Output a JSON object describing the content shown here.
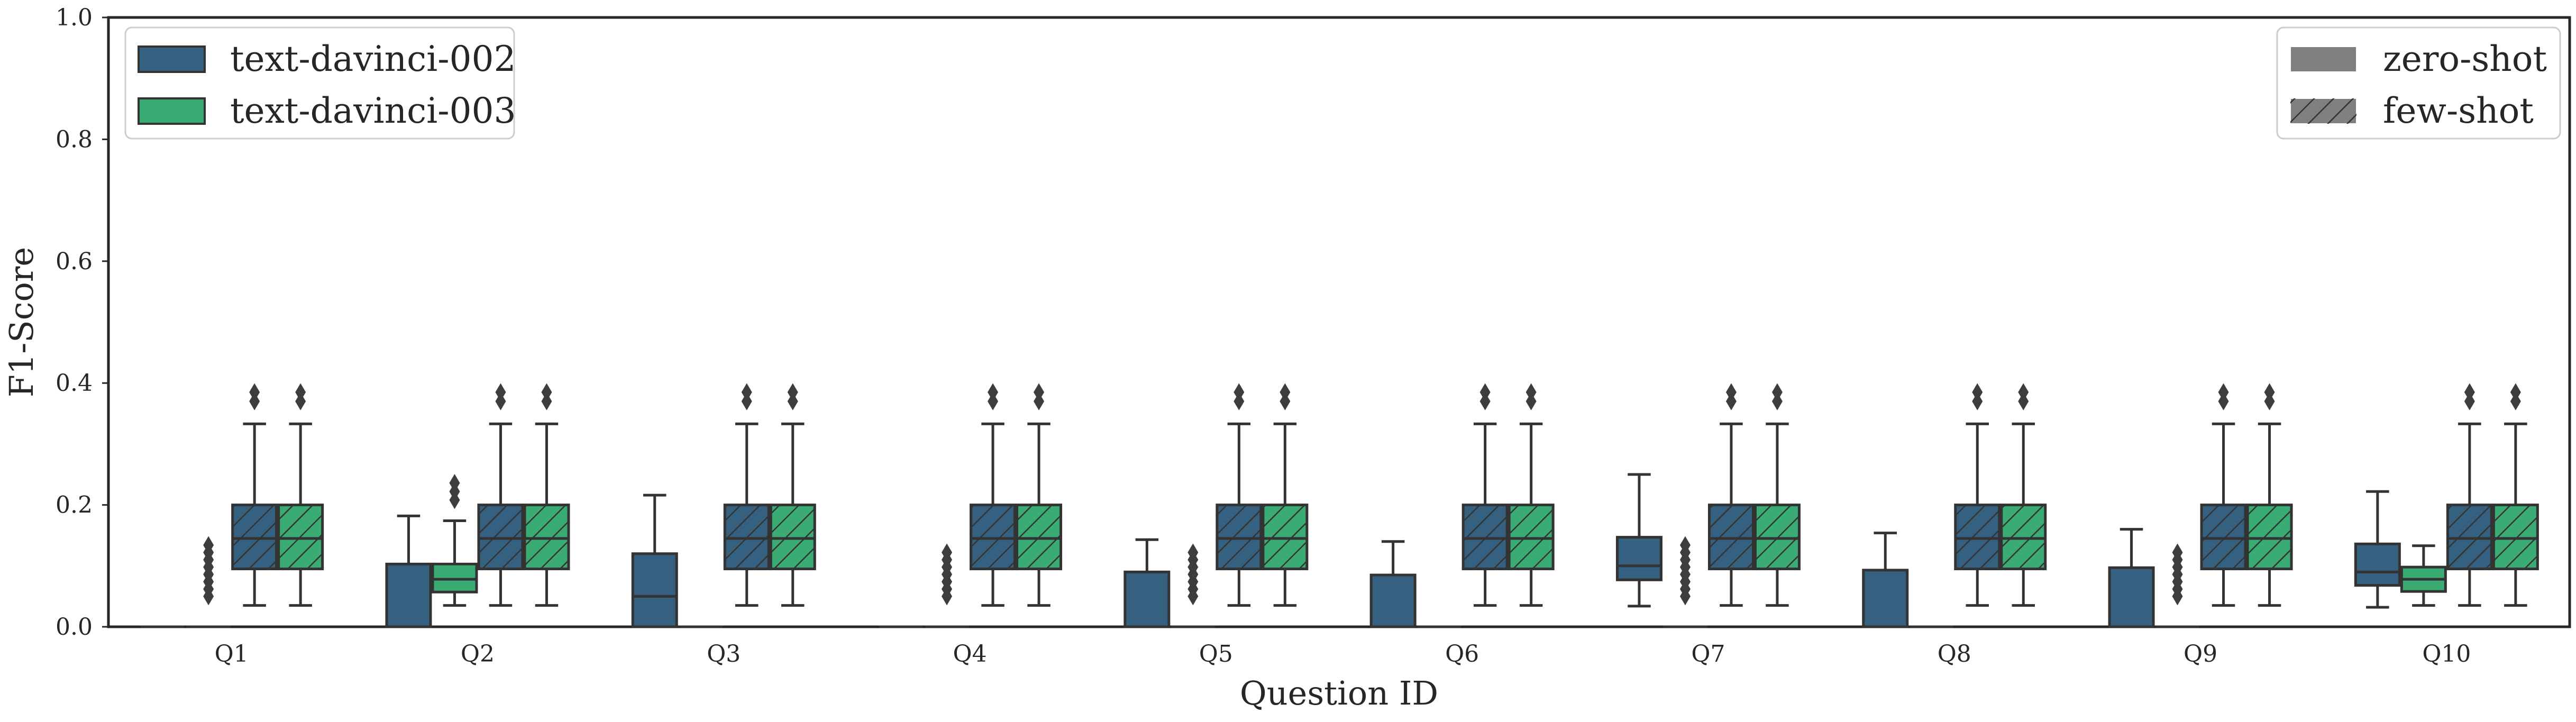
{
  "chart_data": {
    "type": "box",
    "xlabel": "Question ID",
    "ylabel": "F1-Score",
    "ylim": [
      0,
      1.0
    ],
    "yticks": [
      "0.0",
      "0.2",
      "0.4",
      "0.6",
      "0.8",
      "1.0"
    ],
    "grid": false,
    "categories": [
      "Q1",
      "Q2",
      "Q3",
      "Q4",
      "Q5",
      "Q6",
      "Q7",
      "Q8",
      "Q9",
      "Q10"
    ],
    "colors": {
      "text-davinci-002": "#35607f",
      "text-davinci-003": "#3bab74",
      "edge": "#333333",
      "legend_gray": "#808080"
    },
    "legend_models": {
      "placement": "upper left",
      "entries": [
        "text-davinci-002",
        "text-davinci-003"
      ]
    },
    "legend_methods": {
      "placement": "upper right",
      "entries": [
        "zero-shot",
        "few-shot"
      ]
    },
    "series": [
      {
        "model": "text-davinci-002",
        "method": "zero-shot",
        "boxes": [
          {
            "q1": 0,
            "med": 0,
            "q3": 0,
            "lo": 0,
            "hi": 0,
            "fliers": []
          },
          {
            "q1": 0,
            "med": 0,
            "q3": 0.103,
            "lo": 0,
            "hi": 0.182,
            "fliers": []
          },
          {
            "q1": 0,
            "med": 0.05,
            "q3": 0.12,
            "lo": 0,
            "hi": 0.216,
            "fliers": []
          },
          {
            "q1": 0,
            "med": 0,
            "q3": 0,
            "lo": 0,
            "hi": 0,
            "fliers": []
          },
          {
            "q1": 0,
            "med": 0,
            "q3": 0.09,
            "lo": 0,
            "hi": 0.143,
            "fliers": []
          },
          {
            "q1": 0,
            "med": 0,
            "q3": 0.085,
            "lo": 0,
            "hi": 0.14,
            "fliers": []
          },
          {
            "q1": 0.077,
            "med": 0.1,
            "q3": 0.147,
            "lo": 0.034,
            "hi": 0.25,
            "fliers": []
          },
          {
            "q1": 0,
            "med": 0,
            "q3": 0.093,
            "lo": 0,
            "hi": 0.154,
            "fliers": []
          },
          {
            "q1": 0,
            "med": 0,
            "q3": 0.097,
            "lo": 0,
            "hi": 0.16,
            "fliers": []
          },
          {
            "q1": 0.068,
            "med": 0.09,
            "q3": 0.136,
            "lo": 0.032,
            "hi": 0.222,
            "fliers": []
          }
        ]
      },
      {
        "model": "text-davinci-003",
        "method": "zero-shot",
        "boxes": [
          {
            "q1": 0,
            "med": 0,
            "q3": 0,
            "lo": 0,
            "hi": 0,
            "fliers": [
              0.05,
              0.062,
              0.074,
              0.086,
              0.098,
              0.11,
              0.122,
              0.134
            ]
          },
          {
            "q1": 0.057,
            "med": 0.078,
            "q3": 0.103,
            "lo": 0.035,
            "hi": 0.174,
            "fliers": [
              0.208,
              0.222,
              0.236
            ]
          },
          {
            "q1": 0,
            "med": 0,
            "q3": 0,
            "lo": 0,
            "hi": 0,
            "fliers": []
          },
          {
            "q1": 0,
            "med": 0,
            "q3": 0,
            "lo": 0,
            "hi": 0,
            "fliers": [
              0.05,
              0.062,
              0.074,
              0.086,
              0.098,
              0.11,
              0.122
            ]
          },
          {
            "q1": 0,
            "med": 0,
            "q3": 0,
            "lo": 0,
            "hi": 0,
            "fliers": [
              0.05,
              0.062,
              0.074,
              0.086,
              0.098,
              0.11,
              0.122
            ]
          },
          {
            "q1": 0,
            "med": 0,
            "q3": 0,
            "lo": 0,
            "hi": 0,
            "fliers": []
          },
          {
            "q1": 0,
            "med": 0,
            "q3": 0,
            "lo": 0,
            "hi": 0,
            "fliers": [
              0.05,
              0.062,
              0.074,
              0.086,
              0.098,
              0.11,
              0.122,
              0.134
            ]
          },
          {
            "q1": 0,
            "med": 0,
            "q3": 0,
            "lo": 0,
            "hi": 0,
            "fliers": []
          },
          {
            "q1": 0,
            "med": 0,
            "q3": 0,
            "lo": 0,
            "hi": 0,
            "fliers": [
              0.05,
              0.062,
              0.074,
              0.086,
              0.098,
              0.11,
              0.122
            ]
          },
          {
            "q1": 0.058,
            "med": 0.078,
            "q3": 0.098,
            "lo": 0.035,
            "hi": 0.133,
            "fliers": []
          }
        ]
      },
      {
        "model": "text-davinci-002",
        "method": "few-shot",
        "boxes": "same-for-all-questions",
        "box": {
          "q1": 0.095,
          "med": 0.145,
          "q3": 0.2,
          "lo": 0.035,
          "hi": 0.333,
          "fliers": [
            0.37,
            0.385
          ]
        }
      },
      {
        "model": "text-davinci-003",
        "method": "few-shot",
        "boxes": "same-for-all-questions",
        "box": {
          "q1": 0.095,
          "med": 0.145,
          "q3": 0.2,
          "lo": 0.035,
          "hi": 0.333,
          "fliers": [
            0.37,
            0.385
          ]
        }
      }
    ]
  }
}
